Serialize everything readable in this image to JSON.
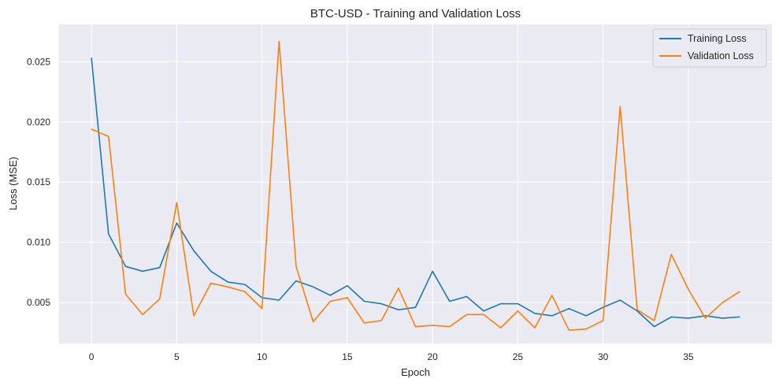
{
  "chart_data": {
    "type": "line",
    "title": "BTC-USD - Training and Validation Loss",
    "xlabel": "Epoch",
    "ylabel": "Loss (MSE)",
    "xlim": [
      -1.9,
      39.9
    ],
    "ylim": [
      0.0016,
      0.0281
    ],
    "xticks": [
      0,
      5,
      10,
      15,
      20,
      25,
      30,
      35
    ],
    "yticks": [
      0.005,
      0.01,
      0.015,
      0.02,
      0.025
    ],
    "ytick_labels": [
      "0.005",
      "0.010",
      "0.015",
      "0.020",
      "0.025"
    ],
    "grid": true,
    "legend_position": "top-right",
    "x": [
      0,
      1,
      2,
      3,
      4,
      5,
      6,
      7,
      8,
      9,
      10,
      11,
      12,
      13,
      14,
      15,
      16,
      17,
      18,
      19,
      20,
      21,
      22,
      23,
      24,
      25,
      26,
      27,
      28,
      29,
      30,
      31,
      32,
      33,
      34,
      35,
      36,
      37,
      38
    ],
    "series": [
      {
        "name": "Training Loss",
        "color": "#1f77b4",
        "values": [
          0.0253,
          0.0107,
          0.008,
          0.0076,
          0.0079,
          0.0116,
          0.0093,
          0.0076,
          0.0067,
          0.0065,
          0.0054,
          0.0052,
          0.0068,
          0.0063,
          0.0056,
          0.0064,
          0.0051,
          0.0049,
          0.0044,
          0.0046,
          0.0076,
          0.0051,
          0.0055,
          0.0043,
          0.0049,
          0.0049,
          0.0041,
          0.0039,
          0.0045,
          0.0039,
          0.0046,
          0.0052,
          0.0043,
          0.003,
          0.0038,
          0.0037,
          0.0039,
          0.0037,
          0.0038
        ]
      },
      {
        "name": "Validation Loss",
        "color": "#ff7f0e",
        "values": [
          0.0194,
          0.0188,
          0.0057,
          0.004,
          0.0053,
          0.0133,
          0.0039,
          0.0066,
          0.0063,
          0.0059,
          0.0045,
          0.0267,
          0.008,
          0.0034,
          0.0051,
          0.0054,
          0.0033,
          0.0035,
          0.0062,
          0.003,
          0.0031,
          0.003,
          0.004,
          0.004,
          0.0029,
          0.0043,
          0.0029,
          0.0056,
          0.0027,
          0.0028,
          0.0035,
          0.0213,
          0.0044,
          0.0035,
          0.009,
          0.0061,
          0.0037,
          0.005,
          0.0059
        ]
      }
    ]
  }
}
